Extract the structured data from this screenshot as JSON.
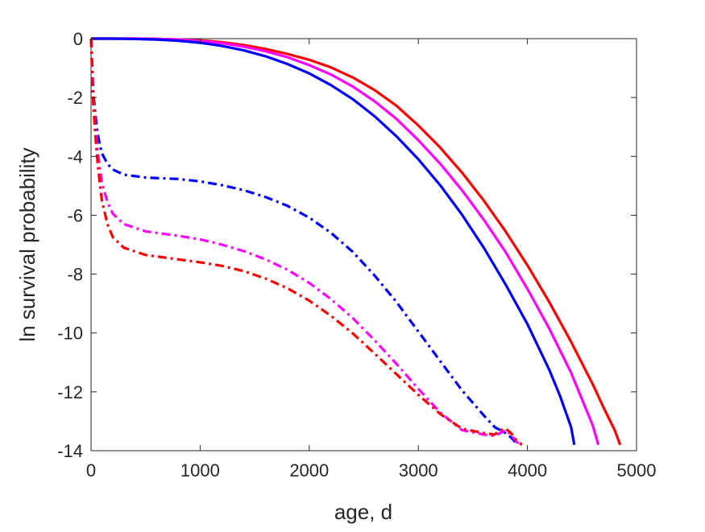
{
  "chart_data": {
    "type": "line",
    "title": "",
    "xlabel": "age, d",
    "ylabel": "ln survival probability",
    "xlim": [
      0,
      5000
    ],
    "ylim": [
      -14,
      0
    ],
    "xticks": [
      0,
      1000,
      2000,
      3000,
      4000,
      5000
    ],
    "yticks": [
      0,
      -2,
      -4,
      -6,
      -8,
      -10,
      -12,
      -14
    ],
    "xtick_labels": [
      "0",
      "1000",
      "2000",
      "3000",
      "4000",
      "5000"
    ],
    "ytick_labels": [
      "0",
      "-2",
      "-4",
      "-6",
      "-8",
      "-10",
      "-12",
      "-14"
    ],
    "grid": false,
    "legend": "none",
    "series": [
      {
        "color": "#ff0000",
        "style": "solid",
        "x": [
          0,
          200,
          400,
          600,
          800,
          1000,
          1200,
          1400,
          1600,
          1800,
          2000,
          2200,
          2400,
          2600,
          2800,
          3000,
          3200,
          3400,
          3600,
          3800,
          4000,
          4200,
          4400,
          4600,
          4700,
          4800,
          4850
        ],
        "y": [
          0,
          0,
          0,
          -0.01,
          -0.03,
          -0.06,
          -0.12,
          -0.22,
          -0.35,
          -0.52,
          -0.72,
          -0.98,
          -1.32,
          -1.75,
          -2.28,
          -2.95,
          -3.7,
          -4.55,
          -5.5,
          -6.55,
          -7.7,
          -8.95,
          -10.3,
          -11.75,
          -12.55,
          -13.3,
          -13.8
        ]
      },
      {
        "color": "#ff00ff",
        "style": "solid",
        "x": [
          0,
          200,
          400,
          600,
          800,
          1000,
          1200,
          1400,
          1600,
          1800,
          2000,
          2200,
          2400,
          2600,
          2800,
          3000,
          3200,
          3400,
          3600,
          3800,
          4000,
          4200,
          4400,
          4500,
          4600,
          4650
        ],
        "y": [
          0,
          0,
          0,
          -0.01,
          -0.03,
          -0.08,
          -0.15,
          -0.27,
          -0.43,
          -0.63,
          -0.9,
          -1.22,
          -1.63,
          -2.13,
          -2.73,
          -3.45,
          -4.25,
          -5.15,
          -6.15,
          -7.25,
          -8.5,
          -9.85,
          -11.35,
          -12.25,
          -13.15,
          -13.8
        ]
      },
      {
        "color": "#0000ff",
        "style": "solid",
        "x": [
          0,
          200,
          400,
          600,
          800,
          1000,
          1200,
          1400,
          1600,
          1800,
          2000,
          2200,
          2400,
          2600,
          2800,
          3000,
          3200,
          3400,
          3600,
          3800,
          4000,
          4200,
          4300,
          4400,
          4430
        ],
        "y": [
          0,
          0,
          -0.01,
          -0.03,
          -0.07,
          -0.14,
          -0.25,
          -0.4,
          -0.6,
          -0.86,
          -1.18,
          -1.58,
          -2.06,
          -2.64,
          -3.32,
          -4.1,
          -4.98,
          -5.98,
          -7.1,
          -8.35,
          -9.7,
          -11.25,
          -12.15,
          -13.2,
          -13.8
        ]
      },
      {
        "color": "#0000ff",
        "style": "dashdot",
        "x": [
          0,
          20,
          40,
          60,
          80,
          100,
          150,
          200,
          300,
          500,
          800,
          1000,
          1200,
          1400,
          1600,
          1800,
          2000,
          2200,
          2400,
          2600,
          2800,
          3000,
          3200,
          3400,
          3600,
          3700,
          3800,
          3850,
          3900
        ],
        "y": [
          0,
          -1.8,
          -2.6,
          -3.2,
          -3.6,
          -3.9,
          -4.25,
          -4.45,
          -4.62,
          -4.72,
          -4.77,
          -4.85,
          -4.98,
          -5.15,
          -5.38,
          -5.68,
          -6.08,
          -6.6,
          -7.25,
          -8.05,
          -8.95,
          -9.95,
          -10.95,
          -11.95,
          -12.8,
          -13.2,
          -13.4,
          -13.55,
          -13.75
        ]
      },
      {
        "color": "#ff00ff",
        "style": "dashdot",
        "x": [
          0,
          20,
          40,
          60,
          80,
          100,
          150,
          200,
          300,
          500,
          800,
          1000,
          1200,
          1400,
          1600,
          1800,
          2000,
          2200,
          2400,
          2600,
          2800,
          3000,
          3200,
          3400,
          3600,
          3700,
          3750,
          3800,
          3850,
          3900,
          3950
        ],
        "y": [
          0,
          -2.0,
          -3.0,
          -3.8,
          -4.4,
          -4.9,
          -5.55,
          -5.95,
          -6.3,
          -6.55,
          -6.7,
          -6.82,
          -7.0,
          -7.22,
          -7.5,
          -7.85,
          -8.3,
          -8.85,
          -9.5,
          -10.25,
          -11.05,
          -11.9,
          -12.7,
          -13.3,
          -13.45,
          -13.5,
          -13.4,
          -13.3,
          -13.45,
          -13.7,
          -13.8
        ]
      },
      {
        "color": "#ff0000",
        "style": "dashdot",
        "x": [
          0,
          20,
          40,
          60,
          80,
          100,
          150,
          200,
          300,
          500,
          800,
          1000,
          1200,
          1400,
          1600,
          1800,
          2000,
          2200,
          2400,
          2600,
          2800,
          3000,
          3200,
          3400,
          3600,
          3700,
          3750,
          3800,
          3850,
          3900,
          3950
        ],
        "y": [
          0,
          -2.2,
          -3.3,
          -4.2,
          -4.9,
          -5.5,
          -6.3,
          -6.75,
          -7.1,
          -7.35,
          -7.5,
          -7.6,
          -7.72,
          -7.9,
          -8.15,
          -8.48,
          -8.9,
          -9.42,
          -10.02,
          -10.7,
          -11.4,
          -12.1,
          -12.75,
          -13.25,
          -13.4,
          -13.45,
          -13.3,
          -13.25,
          -13.4,
          -13.65,
          -13.8
        ]
      }
    ]
  }
}
